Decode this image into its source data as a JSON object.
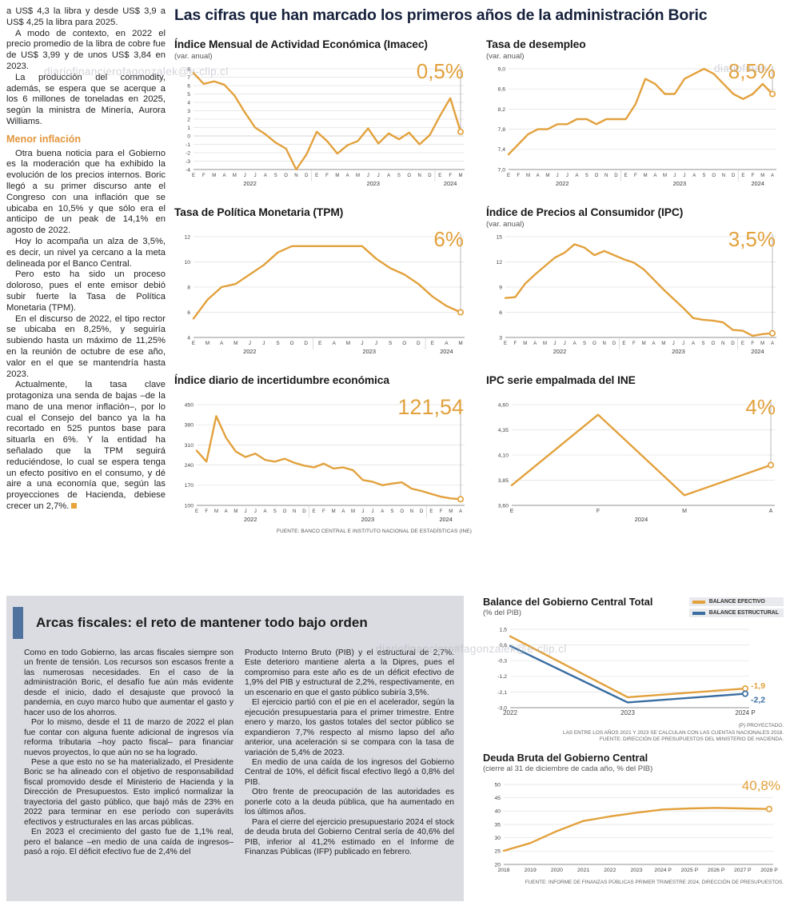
{
  "page": {
    "main_title": "Las cifras que han marcado los primeros años de la administración Boric",
    "top_source": "FUENTE: BANCO CENTRAL E INSTITUTO NACIONAL DE ESTADÍSTICAS (INE)"
  },
  "watermarks": {
    "w1": "diariofinancierofagonzalek@e-clip.cl",
    "w2": "diariofinan",
    "w3": "diariofinanciero#fagonzalek@e-clip.cl"
  },
  "article": {
    "p1": "a US$ 4,3 la libra y desde US$ 3,9 a US$ 4,25 la libra para 2025.",
    "p2": "A modo de contexto, en 2022 el precio promedio de la libra de cobre fue de US$ 3,99 y de unos US$ 3,84 en 2023.",
    "p3": "La producción del commodity, además, se espera que se acerque a los 6 millones de toneladas en 2025, según la ministra de Minería, Aurora Williams.",
    "heading": "Menor inflación",
    "p4": "Otra buena noticia para el Gobierno es la moderación que ha exhibido la evolución de los precios internos. Boric llegó a su primer discurso ante el Congreso con una inflación que se ubicaba en 10,5% y que sólo era el anticipo de un peak de 14,1% en agosto de 2022.",
    "p5": "Hoy lo acompaña un alza de 3,5%, es decir, un nivel ya cercano a la meta delineada por el Banco Central.",
    "p6": "Pero esto ha sido un proceso doloroso, pues el ente emisor debió subir fuerte la Tasa de Política Monetaria (TPM).",
    "p7": "En el discurso de 2022, el tipo rector se ubicaba en 8,25%, y seguiría subiendo hasta un máximo de 11,25% en la reunión de octubre de ese año, valor en el que se mantendría hasta 2023.",
    "p8": "Actualmente, la tasa clave protagoniza una senda de bajas –de la mano de una menor inflación–, por lo cual el Consejo del banco ya la ha recortado en 525 puntos base para situarla en 6%. Y la entidad ha señalado que la TPM seguirá reduciéndose, lo cual se espera tenga un efecto positivo en el consumo, y dé aire a una economía que, según las proyecciones de Hacienda, debiese crecer un 2,7%."
  },
  "fiscal": {
    "title": "Arcas fiscales: el reto de mantener todo bajo orden",
    "col1": {
      "p1": "Como en todo Gobierno, las arcas fiscales siempre son un frente de tensión. Los recursos son escasos frente a las numerosas necesidades. En el caso de la administración Boric, el desafío fue aún más evidente desde el inicio, dado el desajuste que provocó la pandemia, en cuyo marco hubo que aumentar el gasto y hacer uso de los ahorros.",
      "p2": "Por lo mismo, desde el 11 de marzo de 2022 el plan fue contar con alguna fuente adicional de ingresos vía reforma tributaria –hoy pacto fiscal– para financiar nuevos proyectos, lo que aún no se ha logrado.",
      "p3": "Pese a que esto no se ha materializado, el Presidente Boric se ha alineado con el objetivo de responsabilidad fiscal promovido desde el Ministerio de Hacienda y la Dirección de Presupuestos. Esto implicó normalizar la trayectoria del gasto público, que bajó más de 23% en 2022 para terminar en ese período con superávits efectivos y estructurales en las arcas públicas.",
      "p4": "En 2023 el crecimiento del gasto fue de 1,1% real, pero el balance –en medio de una caída de ingresos– pasó a rojo. El déficit efectivo fue de 2,4% del"
    },
    "col2": {
      "p1": "Producto Interno Bruto (PIB) y el estructural de 2,7%. Este deterioro mantiene alerta a la Dipres, pues el compromiso para este año es de un déficit efectivo de 1,9% del PIB y estructural de 2,2%, respectivamente, en un escenario en que el gasto público subiría 3,5%.",
      "p2": "El ejercicio partió con el pie en el acelerador, según la ejecución presupuestaria para el primer trimestre. Entre enero y marzo, los gastos totales del sector público se expandieron 7,7% respecto al mismo lapso del año anterior, una aceleración si se compara con la tasa de variación de 5,4% de 2023.",
      "p3": "En medio de una caída de los ingresos del Gobierno Central de 10%, el déficit fiscal efectivo llegó a 0,8% del PIB.",
      "p4": "Otro frente de preocupación de las autoridades es ponerle coto a la deuda pública, que ha aumentado en los últimos años.",
      "p5": "Para el cierre del ejercicio presupuestario 2024 el stock de deuda bruta del Gobierno Central sería de 40,6% del PIB, inferior al 41,2% estimado en el Informe de Finanzas Públicas (IFP) publicado en febrero."
    },
    "balance": {
      "legend": {
        "effective": "BALANCE EFECTIVO",
        "structural": "BALANCE ESTRUCTURAL"
      },
      "note1": "(P) PROYECTADO.",
      "note2": "LAS ENTRE LOS AÑOS 2021 Y 2023 SE CALCULAN CON LAS CUENTAS NACIONALES 2018.",
      "note3": "FUENTE: DIRECCIÓN DE PRESUPUESTOS DEL MINISTERIO DE HACIENDA."
    },
    "debt": {
      "source": "FUENTE: INFORME DE FINANZAS PÚBLICAS PRIMER TRIMESTRE 2024, DIRECCIÓN DE PRESUPUESTOS."
    }
  },
  "colors": {
    "accent_orange": "#e2a13c",
    "accent_blue": "#3a6ea1"
  },
  "chart_data": [
    {
      "id": "imacec",
      "type": "line",
      "title": "Índice Mensual de Actividad Económica (Imacec)",
      "subtitle": "(var. anual)",
      "value_label": "0,5%",
      "ylim": [
        -4,
        8
      ],
      "yticks": [
        {
          "v": 8,
          "l": "8"
        },
        {
          "v": 7,
          "l": "7"
        },
        {
          "v": 6,
          "l": "6"
        },
        {
          "v": 5,
          "l": "5"
        },
        {
          "v": 4,
          "l": "4"
        },
        {
          "v": 3,
          "l": "3"
        },
        {
          "v": 2,
          "l": "2"
        },
        {
          "v": 1,
          "l": "1"
        },
        {
          "v": 0,
          "l": "0"
        },
        {
          "v": -1,
          "l": "-1"
        },
        {
          "v": -2,
          "l": "-2"
        },
        {
          "v": -3,
          "l": "-3"
        },
        {
          "v": -4,
          "l": "-4"
        }
      ],
      "x": [
        "E",
        "F",
        "M",
        "A",
        "M",
        "J",
        "J",
        "A",
        "S",
        "O",
        "N",
        "D",
        "E",
        "F",
        "M",
        "A",
        "M",
        "J",
        "J",
        "A",
        "S",
        "O",
        "N",
        "D",
        "E",
        "F",
        "M"
      ],
      "groups": [
        {
          "label": "2022",
          "from": 0,
          "to": 11
        },
        {
          "label": "2023",
          "from": 12,
          "to": 23
        },
        {
          "label": "2024",
          "from": 24,
          "to": 26
        }
      ],
      "series": [
        {
          "name": "Imacec",
          "color": "#e2a13c",
          "values": [
            7.5,
            6.2,
            6.5,
            6.1,
            4.8,
            2.8,
            1.0,
            0.2,
            -0.8,
            -1.5,
            -4.0,
            -2.2,
            0.5,
            -0.6,
            -2.1,
            -1.1,
            -0.6,
            0.9,
            -0.9,
            0.3,
            -0.4,
            0.4,
            -1.0,
            0.1,
            2.4,
            4.5,
            0.5
          ]
        }
      ],
      "pad": {
        "l": 24,
        "r": 14,
        "t": 8,
        "b": 26
      },
      "xfs": 6,
      "end_line": true
    },
    {
      "id": "desempleo",
      "type": "line",
      "title": "Tasa de desempleo",
      "subtitle": "(var. anual)",
      "value_label": "8,5%",
      "ylim": [
        7.0,
        9.0
      ],
      "yticks": [
        {
          "v": 9.0,
          "l": "9,0"
        },
        {
          "v": 8.6,
          "l": "8,6"
        },
        {
          "v": 8.2,
          "l": "8,2"
        },
        {
          "v": 7.8,
          "l": "7,8"
        },
        {
          "v": 7.4,
          "l": "7,4"
        },
        {
          "v": 7.0,
          "l": "7,0"
        }
      ],
      "x": [
        "E",
        "F",
        "M",
        "A",
        "M",
        "J",
        "J",
        "A",
        "S",
        "O",
        "N",
        "D",
        "E",
        "F",
        "M",
        "A",
        "M",
        "J",
        "J",
        "A",
        "S",
        "O",
        "N",
        "D",
        "E",
        "F",
        "M",
        "A"
      ],
      "groups": [
        {
          "label": "2022",
          "from": 0,
          "to": 11
        },
        {
          "label": "2023",
          "from": 12,
          "to": 23
        },
        {
          "label": "2024",
          "from": 24,
          "to": 27
        }
      ],
      "series": [
        {
          "name": "Tasa de desempleo",
          "color": "#e2a13c",
          "values": [
            7.3,
            7.5,
            7.7,
            7.8,
            7.8,
            7.9,
            7.9,
            8.0,
            8.0,
            7.9,
            8.0,
            8.0,
            8.0,
            8.3,
            8.8,
            8.7,
            8.5,
            8.5,
            8.8,
            8.9,
            9.0,
            8.9,
            8.7,
            8.5,
            8.4,
            8.5,
            8.7,
            8.5
          ]
        }
      ],
      "pad": {
        "l": 28,
        "r": 14,
        "t": 8,
        "b": 26
      },
      "xfs": 6,
      "end_line": true
    },
    {
      "id": "tpm",
      "type": "line",
      "title": "Tasa de Política Monetaria (TPM)",
      "subtitle": "",
      "value_label": "6%",
      "ylim": [
        4,
        12
      ],
      "yticks": [
        {
          "v": 12,
          "l": "12"
        },
        {
          "v": 10,
          "l": "10"
        },
        {
          "v": 8,
          "l": "8"
        },
        {
          "v": 6,
          "l": "6"
        },
        {
          "v": 4,
          "l": "4"
        }
      ],
      "x": [
        "E",
        "M",
        "A",
        "M",
        "J",
        "J",
        "S",
        "O",
        "D",
        "E",
        "A",
        "M",
        "J",
        "J",
        "S",
        "O",
        "D",
        "E",
        "A",
        "M"
      ],
      "groups": [
        {
          "label": "2022",
          "from": 0,
          "to": 8
        },
        {
          "label": "2023",
          "from": 9,
          "to": 16
        },
        {
          "label": "2024",
          "from": 17,
          "to": 19
        }
      ],
      "series": [
        {
          "name": "TPM",
          "color": "#e2a13c",
          "values": [
            5.5,
            7.0,
            8.0,
            8.25,
            9.0,
            9.75,
            10.75,
            11.25,
            11.25,
            11.25,
            11.25,
            11.25,
            11.25,
            10.25,
            9.5,
            9.0,
            8.25,
            7.25,
            6.5,
            6.0
          ]
        }
      ],
      "pad": {
        "l": 24,
        "r": 14,
        "t": 8,
        "b": 26
      },
      "xfs": 6.4,
      "end_line": true
    },
    {
      "id": "ipc",
      "type": "line",
      "title": "Índice de Precios al Consumidor (IPC)",
      "subtitle": "(var. anual)",
      "value_label": "3,5%",
      "ylim": [
        3,
        15
      ],
      "yticks": [
        {
          "v": 15,
          "l": "15"
        },
        {
          "v": 12,
          "l": "12"
        },
        {
          "v": 9,
          "l": "9"
        },
        {
          "v": 6,
          "l": "6"
        },
        {
          "v": 3,
          "l": "3"
        }
      ],
      "x": [
        "E",
        "F",
        "M",
        "A",
        "M",
        "J",
        "J",
        "A",
        "S",
        "O",
        "N",
        "D",
        "E",
        "F",
        "M",
        "A",
        "M",
        "J",
        "J",
        "A",
        "S",
        "O",
        "N",
        "D",
        "E",
        "F",
        "M",
        "A"
      ],
      "groups": [
        {
          "label": "2022",
          "from": 0,
          "to": 11
        },
        {
          "label": "2023",
          "from": 12,
          "to": 23
        },
        {
          "label": "2024",
          "from": 24,
          "to": 27
        }
      ],
      "series": [
        {
          "name": "IPC",
          "color": "#e2a13c",
          "values": [
            7.7,
            7.8,
            9.4,
            10.5,
            11.5,
            12.5,
            13.1,
            14.1,
            13.7,
            12.8,
            13.3,
            12.8,
            12.3,
            11.9,
            11.1,
            9.9,
            8.7,
            7.6,
            6.5,
            5.3,
            5.1,
            5.0,
            4.8,
            3.9,
            3.8,
            3.2,
            3.4,
            3.5
          ]
        }
      ],
      "pad": {
        "l": 24,
        "r": 14,
        "t": 8,
        "b": 26
      },
      "xfs": 6,
      "end_line": true
    },
    {
      "id": "incertidumbre",
      "type": "line",
      "title": "Índice diario de incertidumbre económica",
      "subtitle": "",
      "value_label": "121,54",
      "ylim": [
        100,
        450
      ],
      "yticks": [
        {
          "v": 450,
          "l": "450"
        },
        {
          "v": 380,
          "l": "380"
        },
        {
          "v": 310,
          "l": "310"
        },
        {
          "v": 240,
          "l": "240"
        },
        {
          "v": 170,
          "l": "170"
        },
        {
          "v": 100,
          "l": "100"
        }
      ],
      "x": [
        "E",
        "F",
        "M",
        "A",
        "M",
        "J",
        "J",
        "A",
        "S",
        "O",
        "N",
        "D",
        "E",
        "F",
        "M",
        "A",
        "M",
        "J",
        "J",
        "A",
        "S",
        "O",
        "N",
        "D",
        "E",
        "F",
        "M",
        "A"
      ],
      "groups": [
        {
          "label": "2022",
          "from": 0,
          "to": 11
        },
        {
          "label": "2023",
          "from": 12,
          "to": 23
        },
        {
          "label": "2024",
          "from": 24,
          "to": 27
        }
      ],
      "series": [
        {
          "name": "Incertidumbre económica",
          "color": "#e2a13c",
          "values": [
            290,
            252,
            410,
            335,
            287,
            268,
            280,
            258,
            252,
            262,
            248,
            238,
            232,
            245,
            228,
            232,
            222,
            188,
            182,
            170,
            176,
            180,
            158,
            150,
            140,
            130,
            124,
            121.54
          ]
        }
      ],
      "pad": {
        "l": 28,
        "r": 14,
        "t": 8,
        "b": 26
      },
      "xfs": 6,
      "end_line": true
    },
    {
      "id": "ipc_ine",
      "type": "line",
      "title": "IPC serie empalmada del INE",
      "subtitle": "",
      "value_label": "4%",
      "ylim": [
        3.6,
        4.6
      ],
      "yticks": [
        {
          "v": 4.6,
          "l": "4,60"
        },
        {
          "v": 4.35,
          "l": "4,35"
        },
        {
          "v": 4.1,
          "l": "4,10"
        },
        {
          "v": 3.85,
          "l": "3,85"
        },
        {
          "v": 3.6,
          "l": "3,60"
        }
      ],
      "x": [
        "E",
        "F",
        "M",
        "A"
      ],
      "groups": [
        {
          "label": "2024",
          "from": 0,
          "to": 3
        }
      ],
      "series": [
        {
          "name": "IPC serie empalmada",
          "color": "#e2a13c",
          "values": [
            3.8,
            4.5,
            3.7,
            4.0
          ]
        }
      ],
      "pad": {
        "l": 32,
        "r": 16,
        "t": 8,
        "b": 26
      },
      "xfs": 7,
      "end_line": true
    },
    {
      "id": "balance",
      "type": "line",
      "title": "Balance del Gobierno Central Total",
      "subtitle": "(% del PIB)",
      "value_label": "",
      "ylim": [
        -3.0,
        1.5
      ],
      "yticks": [
        {
          "v": 1.5,
          "l": "1,5"
        },
        {
          "v": 0.6,
          "l": "0,6"
        },
        {
          "v": -0.3,
          "l": "-0,3"
        },
        {
          "v": -1.2,
          "l": "-1,2"
        },
        {
          "v": -2.1,
          "l": "-2,1"
        },
        {
          "v": -3.0,
          "l": "-3,0"
        }
      ],
      "x": [
        "2022",
        "2023",
        "2024 P"
      ],
      "groups": [],
      "series": [
        {
          "name": "Balance efectivo",
          "color": "#e2a13c",
          "values": [
            1.1,
            -2.4,
            -1.9
          ],
          "end_label": "-1,9",
          "end_dy": 0
        },
        {
          "name": "Balance estructural",
          "color": "#3a6ea1",
          "values": [
            0.55,
            -2.7,
            -2.2
          ],
          "end_label": "-2,2",
          "end_dy": 11
        }
      ],
      "pad": {
        "l": 34,
        "r": 48,
        "t": 8,
        "b": 16
      },
      "xfs": 8,
      "end_line": false
    },
    {
      "id": "deuda_bruta",
      "type": "line",
      "title": "Deuda Bruta del Gobierno Central",
      "subtitle": "(cierre al 31 de diciembre de cada año, % del PIB)",
      "value_label": "40,8%",
      "ylim": [
        20,
        50
      ],
      "yticks": [
        {
          "v": 50,
          "l": "50"
        },
        {
          "v": 45,
          "l": "45"
        },
        {
          "v": 40,
          "l": "40"
        },
        {
          "v": 35,
          "l": "35"
        },
        {
          "v": 30,
          "l": "30"
        },
        {
          "v": 25,
          "l": "25"
        },
        {
          "v": 20,
          "l": "20"
        }
      ],
      "x": [
        "2018",
        "2019",
        "2020",
        "2021",
        "2022",
        "2023",
        "2024 P",
        "2025 P",
        "2026 P",
        "2027 P",
        "2028 P"
      ],
      "groups": [],
      "series": [
        {
          "name": "Deuda bruta",
          "color": "#e2a13c",
          "values": [
            25.1,
            28.0,
            32.5,
            36.3,
            38.0,
            39.4,
            40.6,
            41.0,
            41.2,
            41.0,
            40.8
          ]
        }
      ],
      "pad": {
        "l": 26,
        "r": 18,
        "t": 10,
        "b": 16
      },
      "xfs": 6.8,
      "end_line": false
    }
  ]
}
